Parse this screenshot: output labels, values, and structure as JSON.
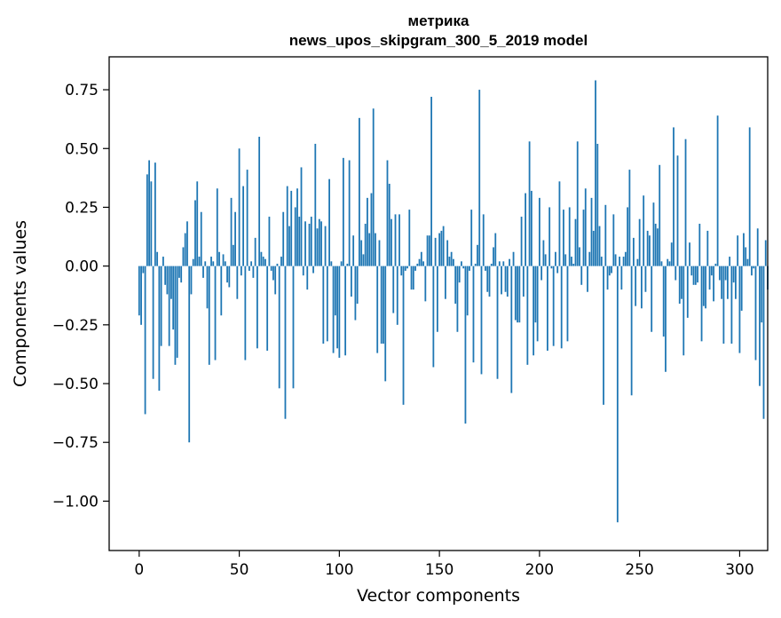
{
  "chart_data": {
    "type": "bar",
    "title_line1": "метрика",
    "title_line2": "news_upos_skipgram_300_5_2019 model",
    "xlabel": "Vector components",
    "ylabel": "Components values",
    "xlim": [
      -15,
      314
    ],
    "ylim": [
      -1.21,
      0.89
    ],
    "xticks": [
      0,
      50,
      100,
      150,
      200,
      250,
      300
    ],
    "xtick_labels": [
      "0",
      "50",
      "100",
      "150",
      "200",
      "250",
      "300"
    ],
    "yticks": [
      -1.0,
      -0.75,
      -0.5,
      -0.25,
      0.0,
      0.25,
      0.5,
      0.75
    ],
    "ytick_labels": [
      "−1.00",
      "−0.75",
      "−0.50",
      "−0.25",
      "0.00",
      "0.25",
      "0.50",
      "0.75"
    ],
    "bar_color": "#1f77b4",
    "values": [
      -0.21,
      -0.25,
      -0.03,
      -0.63,
      0.39,
      0.45,
      0.36,
      -0.48,
      0.44,
      0.06,
      -0.53,
      -0.34,
      0.04,
      -0.08,
      -0.12,
      -0.34,
      -0.14,
      -0.27,
      -0.42,
      -0.39,
      -0.05,
      -0.07,
      0.08,
      0.14,
      0.19,
      -0.75,
      -0.12,
      0.03,
      0.28,
      0.36,
      0.04,
      0.23,
      -0.05,
      0.02,
      -0.18,
      -0.42,
      0.04,
      0.02,
      -0.4,
      0.33,
      0.06,
      -0.21,
      0.05,
      0.02,
      -0.07,
      -0.09,
      0.29,
      0.09,
      0.23,
      -0.14,
      0.5,
      -0.04,
      0.34,
      -0.4,
      0.41,
      -0.02,
      0.02,
      -0.05,
      0.12,
      -0.35,
      0.55,
      0.06,
      0.04,
      0.03,
      -0.36,
      0.21,
      -0.02,
      -0.06,
      -0.12,
      0.01,
      -0.52,
      0.04,
      0.23,
      -0.65,
      0.34,
      0.17,
      0.32,
      -0.52,
      0.25,
      0.33,
      0.21,
      0.42,
      -0.04,
      0.19,
      -0.1,
      0.18,
      0.21,
      -0.03,
      0.52,
      0.16,
      0.2,
      0.19,
      -0.33,
      0.17,
      -0.32,
      0.37,
      0.02,
      -0.37,
      -0.21,
      -0.35,
      -0.39,
      0.02,
      0.46,
      -0.38,
      0.01,
      0.45,
      -0.13,
      0.13,
      -0.23,
      -0.16,
      0.63,
      0.11,
      0.05,
      0.18,
      0.29,
      0.14,
      0.31,
      0.67,
      0.14,
      -0.37,
      0.11,
      -0.33,
      -0.33,
      -0.49,
      0.45,
      0.35,
      0.2,
      -0.2,
      0.22,
      -0.25,
      0.22,
      -0.04,
      -0.59,
      -0.02,
      -0.01,
      0.24,
      -0.1,
      -0.1,
      -0.02,
      0.01,
      0.03,
      0.06,
      0.02,
      -0.15,
      0.13,
      0.13,
      0.72,
      -0.43,
      0.12,
      -0.28,
      0.14,
      0.15,
      0.17,
      -0.14,
      0.11,
      0.04,
      0.06,
      0.03,
      -0.16,
      -0.28,
      -0.07,
      0.02,
      -0.01,
      -0.67,
      -0.21,
      -0.02,
      0.24,
      -0.41,
      0.01,
      0.09,
      0.75,
      -0.46,
      0.22,
      -0.02,
      -0.11,
      -0.13,
      0.01,
      0.08,
      0.14,
      -0.48,
      0.02,
      -0.12,
      0.02,
      -0.11,
      -0.13,
      0.03,
      -0.54,
      0.06,
      -0.23,
      -0.24,
      -0.24,
      0.21,
      -0.13,
      0.31,
      -0.42,
      0.53,
      0.32,
      -0.38,
      -0.24,
      -0.32,
      0.29,
      -0.06,
      0.11,
      0.05,
      -0.36,
      0.25,
      -0.01,
      -0.34,
      0.06,
      -0.03,
      0.36,
      -0.35,
      0.24,
      0.05,
      -0.32,
      0.25,
      0.04,
      0.01,
      0.2,
      0.53,
      0.08,
      -0.08,
      0.24,
      0.33,
      -0.11,
      0.06,
      0.29,
      0.15,
      0.79,
      0.52,
      0.17,
      0.04,
      -0.59,
      0.26,
      -0.1,
      -0.04,
      -0.03,
      0.22,
      0.05,
      -1.09,
      0.04,
      -0.1,
      0.04,
      0.06,
      0.25,
      0.41,
      -0.55,
      0.12,
      -0.17,
      0.03,
      0.2,
      -0.18,
      0.3,
      -0.11,
      0.15,
      0.13,
      -0.28,
      0.27,
      0.18,
      0.16,
      0.43,
      0.02,
      -0.3,
      -0.45,
      0.03,
      0.02,
      0.1,
      0.59,
      -0.06,
      0.47,
      -0.16,
      -0.14,
      -0.38,
      0.54,
      -0.22,
      0.1,
      -0.04,
      -0.08,
      -0.08,
      -0.07,
      0.18,
      -0.32,
      -0.17,
      -0.18,
      0.15,
      -0.1,
      -0.04,
      -0.15,
      0.01,
      0.64,
      -0.06,
      -0.14,
      -0.33,
      -0.06,
      -0.14,
      0.04,
      -0.33,
      -0.07,
      -0.14,
      0.13,
      -0.37,
      -0.19,
      0.14,
      0.08,
      0.03,
      0.59,
      -0.04,
      -0.01,
      -0.4,
      0.16,
      -0.51,
      -0.24,
      -0.65,
      0.11,
      -0.1
    ]
  }
}
